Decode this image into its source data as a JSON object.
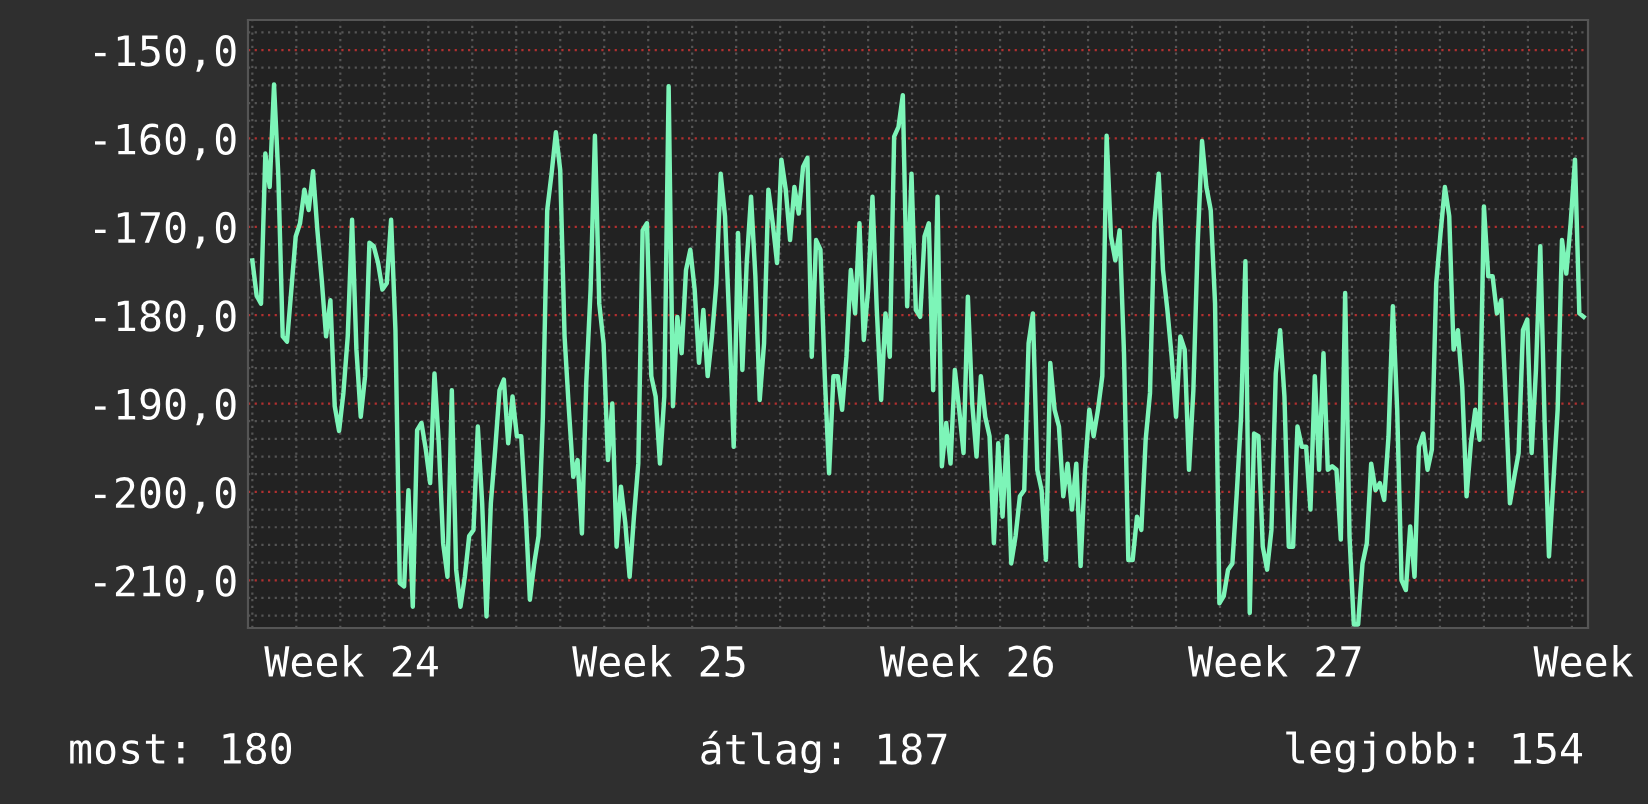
{
  "chart_data": {
    "type": "line",
    "color": "#7df5b8",
    "values": [
      -173.8,
      -177.8,
      -178.7,
      -161.7,
      -165.5,
      -153.9,
      -164.3,
      -182.4,
      -183.0,
      -177.1,
      -171.1,
      -169.6,
      -165.8,
      -168.1,
      -163.7,
      -170.4,
      -176.0,
      -182.4,
      -178.3,
      -190.3,
      -193.1,
      -188.8,
      -182.4,
      -169.2,
      -183.9,
      -191.5,
      -186.9,
      -171.8,
      -172.2,
      -174.1,
      -177.1,
      -176.4,
      -169.2,
      -181.7,
      -210.3,
      -210.7,
      -199.8,
      -213.0,
      -193.0,
      -192.2,
      -195.2,
      -199.0,
      -186.6,
      -194.5,
      -205.8,
      -209.6,
      -188.5,
      -208.8,
      -213.0,
      -209.6,
      -205.0,
      -204.3,
      -192.6,
      -201.3,
      -214.1,
      -201.3,
      -195.2,
      -188.5,
      -187.3,
      -194.5,
      -189.2,
      -193.7,
      -193.7,
      -202.0,
      -212.2,
      -208.1,
      -205.0,
      -191.5,
      -168.1,
      -164.0,
      -159.3,
      -163.6,
      -182.4,
      -190.7,
      -198.3,
      -196.4,
      -204.7,
      -187.7,
      -177.1,
      -159.7,
      -178.7,
      -183.2,
      -196.4,
      -190.0,
      -206.2,
      -199.4,
      -203.5,
      -209.6,
      -202.8,
      -196.8,
      -170.4,
      -169.6,
      -186.9,
      -189.2,
      -196.8,
      -189.2,
      -154.1,
      -190.3,
      -180.2,
      -184.3,
      -174.9,
      -172.6,
      -177.1,
      -185.4,
      -179.4,
      -186.9,
      -182.4,
      -176.4,
      -164.0,
      -168.8,
      -181.0,
      -194.9,
      -170.7,
      -186.2,
      -174.1,
      -166.6,
      -175.6,
      -189.6,
      -183.2,
      -165.8,
      -169.6,
      -174.1,
      -162.4,
      -165.8,
      -171.5,
      -165.5,
      -168.5,
      -163.2,
      -162.2,
      -184.7,
      -171.5,
      -172.6,
      -186.9,
      -197.9,
      -186.9,
      -186.9,
      -190.7,
      -184.7,
      -174.9,
      -179.8,
      -169.6,
      -182.8,
      -177.1,
      -166.6,
      -179.4,
      -189.6,
      -179.8,
      -184.7,
      -159.8,
      -158.7,
      -155.1,
      -179.0,
      -164.0,
      -179.4,
      -180.2,
      -171.1,
      -169.6,
      -188.5,
      -166.6,
      -197.1,
      -192.2,
      -196.8,
      -186.2,
      -190.7,
      -195.6,
      -177.9,
      -190.0,
      -196.0,
      -186.9,
      -191.5,
      -193.7,
      -205.8,
      -194.5,
      -202.8,
      -193.7,
      -208.1,
      -205.0,
      -200.5,
      -199.8,
      -183.2,
      -179.8,
      -197.5,
      -199.8,
      -207.7,
      -185.4,
      -190.7,
      -192.6,
      -200.5,
      -196.8,
      -202.0,
      -196.8,
      -208.4,
      -197.5,
      -190.7,
      -193.7,
      -190.7,
      -186.9,
      -159.7,
      -171.1,
      -173.8,
      -170.4,
      -184.3,
      -207.7,
      -207.7,
      -202.8,
      -204.3,
      -194.1,
      -188.8,
      -169.6,
      -164.0,
      -174.9,
      -179.4,
      -184.7,
      -191.5,
      -182.4,
      -183.9,
      -197.5,
      -188.5,
      -171.8,
      -160.3,
      -165.5,
      -168.1,
      -178.7,
      -212.6,
      -211.8,
      -208.8,
      -208.1,
      -200.2,
      -191.5,
      -173.9,
      -213.7,
      -193.4,
      -193.7,
      -206.2,
      -208.8,
      -204.3,
      -186.6,
      -181.7,
      -189.2,
      -206.2,
      -206.2,
      -192.6,
      -194.9,
      -194.9,
      -202.0,
      -186.9,
      -197.5,
      -184.3,
      -197.5,
      -197.1,
      -197.5,
      -205.4,
      -177.5,
      -205.0,
      -215.0,
      -215.0,
      -208.1,
      -205.8,
      -196.8,
      -199.8,
      -199.0,
      -200.9,
      -193.7,
      -179.0,
      -190.7,
      -210.0,
      -211.1,
      -203.9,
      -209.6,
      -194.9,
      -193.4,
      -197.5,
      -195.2,
      -176.4,
      -170.7,
      -165.5,
      -168.8,
      -183.9,
      -181.7,
      -188.1,
      -200.5,
      -194.5,
      -190.7,
      -194.1,
      -167.7,
      -175.6,
      -175.6,
      -179.8,
      -178.3,
      -189.2,
      -201.3,
      -198.3,
      -195.6,
      -181.7,
      -180.5,
      -195.6,
      -186.2,
      -172.2,
      -192.2,
      -207.3,
      -199.0,
      -190.7,
      -171.5,
      -175.3,
      -169.6,
      -162.4,
      -179.8,
      -180.2
    ],
    "ylim": [
      -215.4,
      -146.6
    ],
    "categories": [
      null,
      null,
      null,
      null,
      null,
      null,
      null,
      null,
      null,
      null,
      null,
      null,
      null,
      null,
      null,
      null,
      null,
      null,
      null,
      null,
      null,
      null,
      null,
      "Week 24",
      null,
      null,
      null,
      null,
      null,
      null,
      null,
      null,
      null,
      null,
      null,
      null,
      null,
      null,
      null,
      null,
      null,
      null,
      null,
      null,
      null,
      null,
      null,
      null,
      null,
      null,
      null,
      null,
      null,
      null,
      null,
      null,
      null,
      null,
      null,
      null,
      null,
      null,
      null,
      null,
      null,
      null,
      null,
      null,
      null,
      null,
      null,
      null,
      null,
      null,
      null,
      null,
      null,
      null,
      null,
      null,
      null,
      null,
      null,
      null,
      null,
      null,
      null,
      null,
      null,
      null,
      null,
      null,
      null,
      null,
      "Week 25",
      null,
      null,
      null,
      null,
      null,
      null,
      null,
      null,
      null,
      null,
      null,
      null,
      null,
      null,
      null,
      null,
      null,
      null,
      null,
      null,
      null,
      null,
      null,
      null,
      null,
      null,
      null,
      null,
      null,
      null,
      null,
      null,
      null,
      null,
      null,
      null,
      null,
      null,
      null,
      null,
      null,
      null,
      null,
      null,
      null,
      null,
      null,
      null,
      null,
      null,
      null,
      null,
      null,
      null,
      null,
      null,
      null,
      null,
      null,
      null,
      null,
      null,
      null,
      null,
      null,
      null,
      null,
      null,
      null,
      null,
      "Week 26",
      null,
      null,
      null,
      null,
      null,
      null,
      null,
      null,
      null,
      null,
      null,
      null,
      null,
      null,
      null,
      null,
      null,
      null,
      null,
      null,
      null,
      null,
      null,
      null,
      null,
      null,
      null,
      null,
      null,
      null,
      null,
      null,
      null,
      null,
      null,
      null,
      null,
      null,
      null,
      null,
      null,
      null,
      null,
      null,
      null,
      null,
      null,
      null,
      null,
      null,
      null,
      null,
      null,
      null,
      null,
      null,
      null,
      null,
      null,
      null,
      null,
      null,
      null,
      null,
      null,
      null,
      null,
      null,
      null,
      null,
      "Week 27",
      null,
      null,
      null,
      null,
      null,
      null,
      null,
      null,
      null,
      null,
      null,
      null,
      null,
      null,
      null,
      null,
      null,
      null,
      null,
      null,
      null,
      null,
      null,
      null,
      null,
      null,
      null,
      null,
      null,
      null,
      null,
      null,
      null,
      null,
      null,
      null,
      null,
      null,
      null,
      null,
      null,
      null,
      null,
      null,
      null,
      null,
      null,
      null,
      null,
      null,
      null,
      null,
      null,
      null,
      null,
      null,
      null,
      null,
      null,
      null,
      null,
      null,
      null,
      null,
      null,
      null,
      null,
      null,
      null,
      null,
      "Week"
    ],
    "yticks": [
      {
        "value": -150,
        "label": "-150,0"
      },
      {
        "value": -160,
        "label": "-160,0"
      },
      {
        "value": -170,
        "label": "-170,0"
      },
      {
        "value": -180,
        "label": "-180,0"
      },
      {
        "value": -190,
        "label": "-190,0"
      },
      {
        "value": -200,
        "label": "-200,0"
      },
      {
        "value": -210,
        "label": "-210,0"
      }
    ],
    "grid": true,
    "line_style": "solid",
    "annotations": [
      "most: 180",
      "átlag: 187",
      "legjobb: 154"
    ]
  }
}
